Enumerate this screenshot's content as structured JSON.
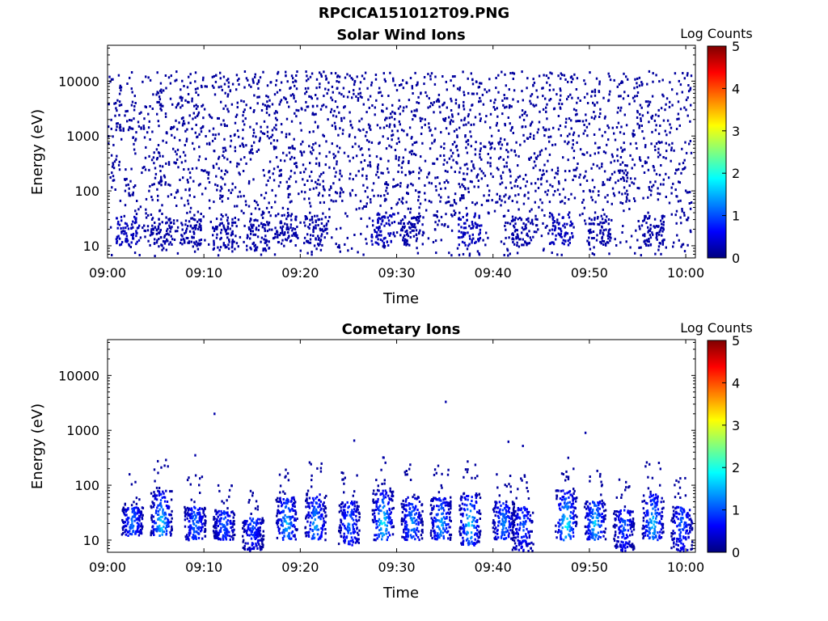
{
  "figure": {
    "title": "RPCICA151012T09.PNG"
  },
  "chart_data": [
    {
      "type": "heatmap",
      "title": "Solar Wind Ions",
      "xlabel": "Time",
      "ylabel": "Energy (eV)",
      "x_ticks": [
        "09:00",
        "09:10",
        "09:20",
        "09:30",
        "09:40",
        "09:50",
        "10:00"
      ],
      "xlim": [
        "09:00",
        "10:01"
      ],
      "y_scale": "log",
      "y_ticks": [
        10,
        100,
        1000,
        10000
      ],
      "ylim": [
        6,
        45000
      ],
      "colorbar": {
        "label": "Log Counts",
        "ticks": [
          0,
          1,
          2,
          3,
          4,
          5
        ],
        "range": [
          0,
          5
        ],
        "colormap": "jet"
      },
      "description_of_values": "sparse single-count noise (log counts ~0-0.3) across all energies; denser low-energy clusters below 40 eV",
      "clusters": [
        {
          "time_min": 2.0,
          "e_lo": 10,
          "e_hi": 35,
          "level": 0.3
        },
        {
          "time_min": 5.5,
          "e_lo": 10,
          "e_hi": 35,
          "level": 0.2
        },
        {
          "time_min": 8.5,
          "e_lo": 10,
          "e_hi": 30,
          "level": 0.2
        },
        {
          "time_min": 12.0,
          "e_lo": 8,
          "e_hi": 35,
          "level": 0.2
        },
        {
          "time_min": 15.5,
          "e_lo": 8,
          "e_hi": 30,
          "level": 0.2
        },
        {
          "time_min": 18.5,
          "e_lo": 10,
          "e_hi": 40,
          "level": 0.2
        },
        {
          "time_min": 21.5,
          "e_lo": 10,
          "e_hi": 35,
          "level": 0.2
        },
        {
          "time_min": 28.5,
          "e_lo": 10,
          "e_hi": 40,
          "level": 0.3
        },
        {
          "time_min": 31.5,
          "e_lo": 10,
          "e_hi": 35,
          "level": 0.2
        },
        {
          "time_min": 37.5,
          "e_lo": 10,
          "e_hi": 40,
          "level": 0.3
        },
        {
          "time_min": 43.0,
          "e_lo": 10,
          "e_hi": 35,
          "level": 0.2
        },
        {
          "time_min": 47.0,
          "e_lo": 10,
          "e_hi": 40,
          "level": 0.3
        },
        {
          "time_min": 51.0,
          "e_lo": 10,
          "e_hi": 35,
          "level": 0.2
        },
        {
          "time_min": 56.5,
          "e_lo": 10,
          "e_hi": 40,
          "level": 0.2
        }
      ]
    },
    {
      "type": "heatmap",
      "title": "Cometary Ions",
      "xlabel": "Time",
      "ylabel": "Energy (eV)",
      "x_ticks": [
        "09:00",
        "09:10",
        "09:20",
        "09:30",
        "09:40",
        "09:50",
        "10:00"
      ],
      "xlim": [
        "09:00",
        "10:01"
      ],
      "y_scale": "log",
      "y_ticks": [
        10,
        100,
        1000,
        10000
      ],
      "ylim": [
        6,
        45000
      ],
      "colorbar": {
        "label": "Log Counts",
        "ticks": [
          0,
          1,
          2,
          3,
          4,
          5
        ],
        "range": [
          0,
          5
        ],
        "colormap": "jet"
      },
      "description_of_values": "periodic bursts at 10-80 eV peaking near 1.5-2 log counts; sparse counts up to ~3000 eV",
      "bursts": [
        {
          "time_min": 2.5,
          "e_lo": 12,
          "e_hi": 40,
          "peak": 1.2
        },
        {
          "time_min": 5.5,
          "e_lo": 12,
          "e_hi": 80,
          "peak": 1.8
        },
        {
          "time_min": 9.0,
          "e_lo": 10,
          "e_hi": 40,
          "peak": 1.2
        },
        {
          "time_min": 12.0,
          "e_lo": 10,
          "e_hi": 35,
          "peak": 1.1
        },
        {
          "time_min": 15.0,
          "e_lo": 6,
          "e_hi": 25,
          "peak": 1.0
        },
        {
          "time_min": 18.5,
          "e_lo": 10,
          "e_hi": 60,
          "peak": 1.6
        },
        {
          "time_min": 21.5,
          "e_lo": 10,
          "e_hi": 70,
          "peak": 1.5
        },
        {
          "time_min": 25.0,
          "e_lo": 8,
          "e_hi": 50,
          "peak": 1.2
        },
        {
          "time_min": 28.5,
          "e_lo": 10,
          "e_hi": 80,
          "peak": 1.9
        },
        {
          "time_min": 31.5,
          "e_lo": 10,
          "e_hi": 60,
          "peak": 1.4
        },
        {
          "time_min": 34.5,
          "e_lo": 10,
          "e_hi": 60,
          "peak": 1.5
        },
        {
          "time_min": 37.5,
          "e_lo": 8,
          "e_hi": 70,
          "peak": 1.8
        },
        {
          "time_min": 41.0,
          "e_lo": 10,
          "e_hi": 50,
          "peak": 1.3
        },
        {
          "time_min": 43.0,
          "e_lo": 6,
          "e_hi": 40,
          "peak": 1.0
        },
        {
          "time_min": 47.5,
          "e_lo": 10,
          "e_hi": 80,
          "peak": 2.0
        },
        {
          "time_min": 50.5,
          "e_lo": 10,
          "e_hi": 50,
          "peak": 1.7
        },
        {
          "time_min": 53.5,
          "e_lo": 6,
          "e_hi": 35,
          "peak": 1.0
        },
        {
          "time_min": 56.5,
          "e_lo": 10,
          "e_hi": 70,
          "peak": 1.7
        },
        {
          "time_min": 59.5,
          "e_lo": 6,
          "e_hi": 40,
          "peak": 1.1
        }
      ]
    }
  ]
}
